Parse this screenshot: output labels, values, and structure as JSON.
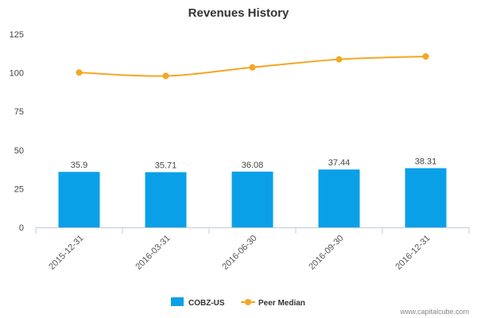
{
  "chart_data": {
    "type": "bar",
    "title": "Revenues History",
    "categories": [
      "2015-12-31",
      "2016-03-31",
      "2016-06-30",
      "2016-09-30",
      "2016-12-31"
    ],
    "series": [
      {
        "name": "COBZ-US",
        "type": "bar",
        "color": "#0aa0e8",
        "values": [
          35.9,
          35.71,
          36.08,
          37.44,
          38.31
        ]
      },
      {
        "name": "Peer Median",
        "type": "line",
        "color": "#f5a623",
        "values": [
          100.2,
          98.0,
          103.5,
          108.7,
          110.6
        ]
      }
    ],
    "ylim": [
      0,
      125
    ],
    "yticks": [
      "0",
      "25",
      "50",
      "75",
      "100",
      "125"
    ],
    "grid": false,
    "legend_position": "bottom-center"
  },
  "watermark": "www.capitalcube.com"
}
